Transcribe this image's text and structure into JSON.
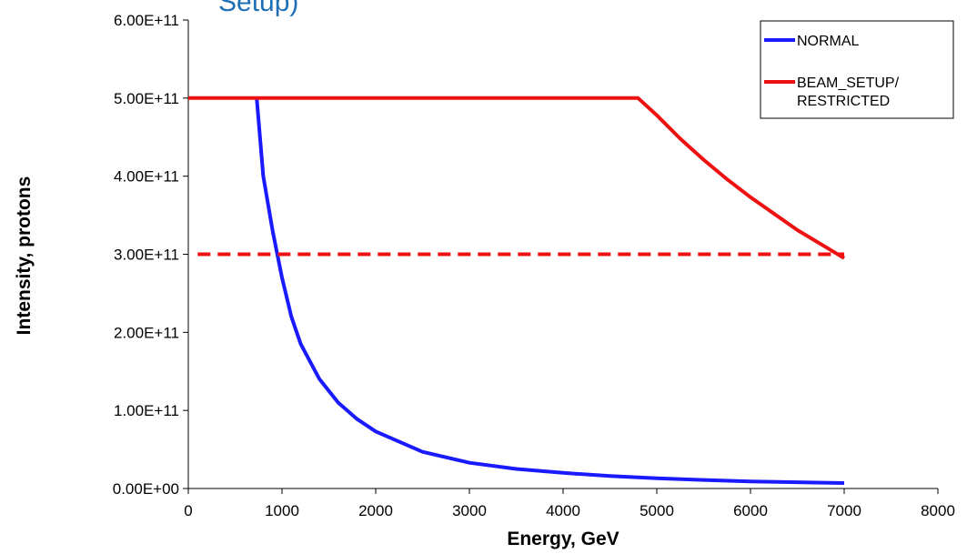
{
  "header_fragment": "Setup)",
  "chart_data": {
    "type": "line",
    "xlabel": "Energy, GeV",
    "ylabel": "Intensity, protons",
    "xlim": [
      0,
      8000
    ],
    "ylim": [
      0,
      600000000000
    ],
    "xticks": [
      0,
      1000,
      2000,
      3000,
      4000,
      5000,
      6000,
      7000,
      8000
    ],
    "x_tick_labels": [
      "0",
      "1000",
      "2000",
      "3000",
      "4000",
      "5000",
      "6000",
      "7000",
      "8000"
    ],
    "yticks": [
      0,
      100000000000,
      200000000000,
      300000000000,
      400000000000,
      500000000000,
      600000000000
    ],
    "y_tick_labels": [
      "0.00E+00",
      "1.00E+11",
      "2.00E+11",
      "3.00E+11",
      "4.00E+11",
      "5.00E+11",
      "6.00E+11"
    ],
    "grid": false,
    "legend_position": "top-right",
    "series": [
      {
        "name": "NORMAL",
        "color": "#1a1aff",
        "dash": "solid",
        "x": [
          730,
          800,
          900,
          1000,
          1100,
          1200,
          1400,
          1600,
          1800,
          2000,
          2500,
          3000,
          3500,
          4000,
          4500,
          5000,
          5500,
          6000,
          6500,
          7000
        ],
        "y": [
          500000000000,
          400000000000,
          330000000000,
          270000000000,
          220000000000,
          185000000000,
          140000000000,
          110000000000,
          89000000000,
          73000000000,
          47000000000,
          33000000000,
          25000000000,
          20000000000,
          16000000000,
          13000000000,
          11000000000,
          9000000000,
          8000000000,
          7000000000
        ]
      },
      {
        "name": "BEAM_SETUP/ RESTRICTED",
        "legend_lines": [
          "BEAM_SETUP/",
          "RESTRICTED"
        ],
        "color": "#ee1111",
        "dash": "solid",
        "x": [
          0,
          4800,
          5000,
          5250,
          5500,
          5750,
          6000,
          6250,
          6500,
          6750,
          7000
        ],
        "y": [
          500000000000,
          500000000000,
          478000000000,
          448000000000,
          421000000000,
          396000000000,
          373000000000,
          352000000000,
          331000000000,
          313000000000,
          295000000000
        ]
      },
      {
        "color": "#ee1111",
        "dash": "dashed",
        "x": [
          100,
          7000
        ],
        "y": [
          300000000000,
          300000000000
        ]
      }
    ]
  }
}
